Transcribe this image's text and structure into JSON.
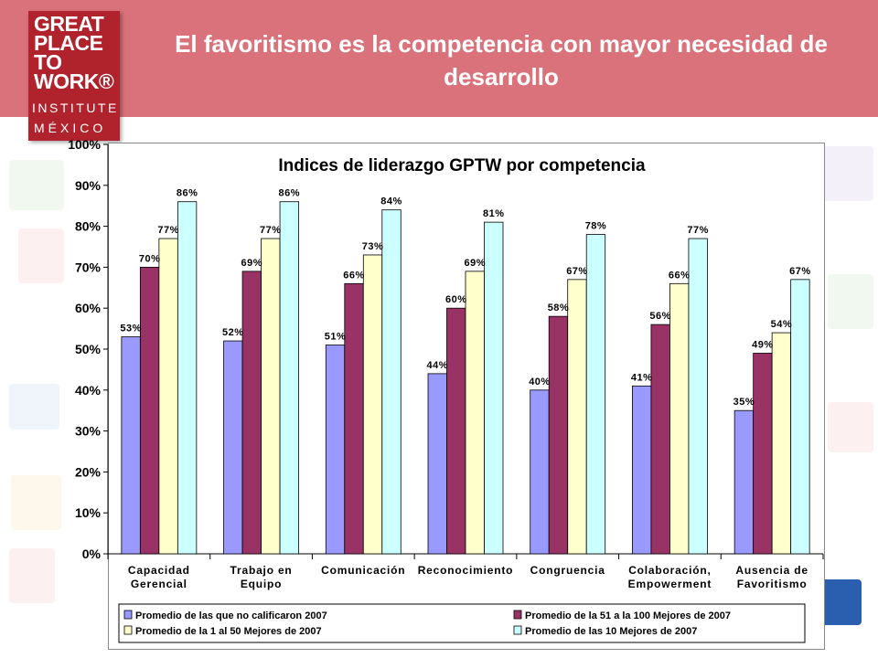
{
  "header": {
    "title": "El favoritismo es la competencia con mayor necesidad de desarrollo"
  },
  "logo": {
    "line1": "GREAT",
    "line2": "PLACE",
    "line3": "TO",
    "line4": "WORK®",
    "line5": "INSTITUTE",
    "line6": "MÉXICO"
  },
  "colors": {
    "header": "#d9727b",
    "logo": "#b0232d",
    "series": [
      "#9999ff",
      "#993366",
      "#ffffcc",
      "#ccffff"
    ]
  },
  "chart_data": {
    "type": "bar",
    "title": "Indices de liderazgo GPTW por competencia",
    "ylim": [
      0,
      100
    ],
    "yticks": [
      "0%",
      "10%",
      "20%",
      "30%",
      "40%",
      "50%",
      "60%",
      "70%",
      "80%",
      "90%",
      "100%"
    ],
    "grid": false,
    "legend": "bottom",
    "categories": [
      [
        "Capacidad",
        "Gerencial"
      ],
      [
        "Trabajo en",
        "Equipo"
      ],
      [
        "Comunicación"
      ],
      [
        "Reconocimiento"
      ],
      [
        "Congruencia"
      ],
      [
        "Colaboración,",
        "Empowerment"
      ],
      [
        "Ausencia de",
        "Favoritismo"
      ]
    ],
    "series": [
      {
        "name": "Promedio de las que no calificaron 2007",
        "color": "#9999ff",
        "values": [
          53,
          52,
          51,
          44,
          40,
          41,
          35
        ],
        "labels": [
          "53%",
          "52%",
          "51%",
          "44%",
          "40%",
          "41%",
          "35%"
        ]
      },
      {
        "name": "Promedio de la 51 a la 100 Mejores de 2007",
        "color": "#993366",
        "values": [
          70,
          69,
          66,
          60,
          58,
          56,
          49
        ],
        "labels": [
          "70%",
          "69%",
          "66%",
          "60%",
          "58%",
          "56%",
          "49%"
        ]
      },
      {
        "name": "Promedio de la 1 al 50 Mejores de 2007",
        "color": "#ffffcc",
        "values": [
          77,
          77,
          73,
          69,
          67,
          66,
          54
        ],
        "labels": [
          "77%",
          "77%",
          "73%",
          "69%",
          "67%",
          "66%",
          "54%"
        ]
      },
      {
        "name": "Promedio de las 10 Mejores de 2007",
        "color": "#ccffff",
        "values": [
          86,
          86,
          84,
          81,
          78,
          77,
          67
        ],
        "labels": [
          "86%",
          "86%",
          "84%",
          "81%",
          "78%",
          "77%",
          "67%"
        ]
      }
    ]
  }
}
